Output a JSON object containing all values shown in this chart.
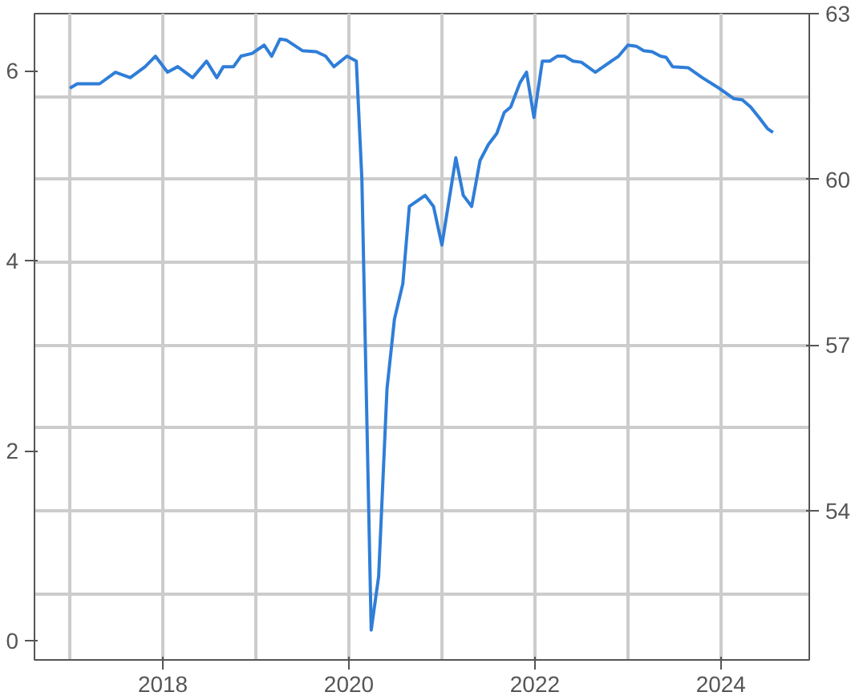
{
  "chart_data": {
    "type": "line",
    "x": [
      2017.0,
      2017.08,
      2017.32,
      2017.49,
      2017.65,
      2017.81,
      2017.92,
      2018.05,
      2018.16,
      2018.32,
      2018.47,
      2018.58,
      2018.65,
      2018.76,
      2018.84,
      2018.96,
      2019.09,
      2019.17,
      2019.26,
      2019.33,
      2019.5,
      2019.65,
      2019.75,
      2019.84,
      2019.98,
      2020.08,
      2020.14,
      2020.24,
      2020.32,
      2020.41,
      2020.49,
      2020.58,
      2020.65,
      2020.82,
      2020.91,
      2021.0,
      2021.15,
      2021.23,
      2021.32,
      2021.41,
      2021.5,
      2021.59,
      2021.67,
      2021.74,
      2021.84,
      2021.91,
      2021.99,
      2022.08,
      2022.16,
      2022.24,
      2022.32,
      2022.41,
      2022.5,
      2022.65,
      2022.9,
      2023.0,
      2023.09,
      2023.17,
      2023.26,
      2023.35,
      2023.41,
      2023.48,
      2023.65,
      2023.8,
      2023.98,
      2024.14,
      2024.23,
      2024.32,
      2024.41,
      2024.5,
      2024.56
    ],
    "series": [
      {
        "color": "#2f7ed8",
        "axis": "y2",
        "values": [
          61.65,
          61.73,
          61.73,
          61.94,
          61.84,
          62.04,
          62.23,
          61.94,
          62.04,
          61.84,
          62.14,
          61.84,
          62.04,
          62.04,
          62.23,
          62.28,
          62.43,
          62.23,
          62.54,
          62.52,
          62.33,
          62.31,
          62.23,
          62.04,
          62.23,
          62.14,
          60.0,
          51.84,
          52.81,
          56.21,
          57.47,
          58.11,
          59.51,
          59.71,
          59.51,
          58.81,
          60.39,
          59.71,
          59.51,
          60.34,
          60.63,
          60.83,
          61.21,
          61.31,
          61.75,
          61.94,
          61.12,
          62.14,
          62.14,
          62.23,
          62.23,
          62.14,
          62.12,
          61.94,
          62.23,
          62.43,
          62.41,
          62.33,
          62.31,
          62.23,
          62.21,
          62.04,
          62.02,
          61.84,
          61.65,
          61.46,
          61.44,
          61.31,
          61.12,
          60.92,
          60.85
        ]
      }
    ],
    "xlim": [
      2016.62,
      2024.95
    ],
    "xticks": [
      {
        "value": 2017,
        "label": null
      },
      2018,
      {
        "value": 2019,
        "label": null
      },
      2020,
      {
        "value": 2021,
        "label": null
      },
      2022,
      {
        "value": 2023,
        "label": null
      },
      2024
    ],
    "ylim": [
      -0.2,
      6.6
    ],
    "yticks": [
      0,
      2,
      4,
      6
    ],
    "y2lim": [
      51.3,
      63
    ],
    "y2ticks": [
      {
        "value": 52.5,
        "label": null
      },
      54,
      {
        "value": 55.5,
        "label": null
      },
      57,
      {
        "value": 58.5,
        "label": null
      },
      60,
      {
        "value": 61.5,
        "label": null
      },
      63
    ],
    "grid": true,
    "marker": "none",
    "line_style": "solid"
  }
}
